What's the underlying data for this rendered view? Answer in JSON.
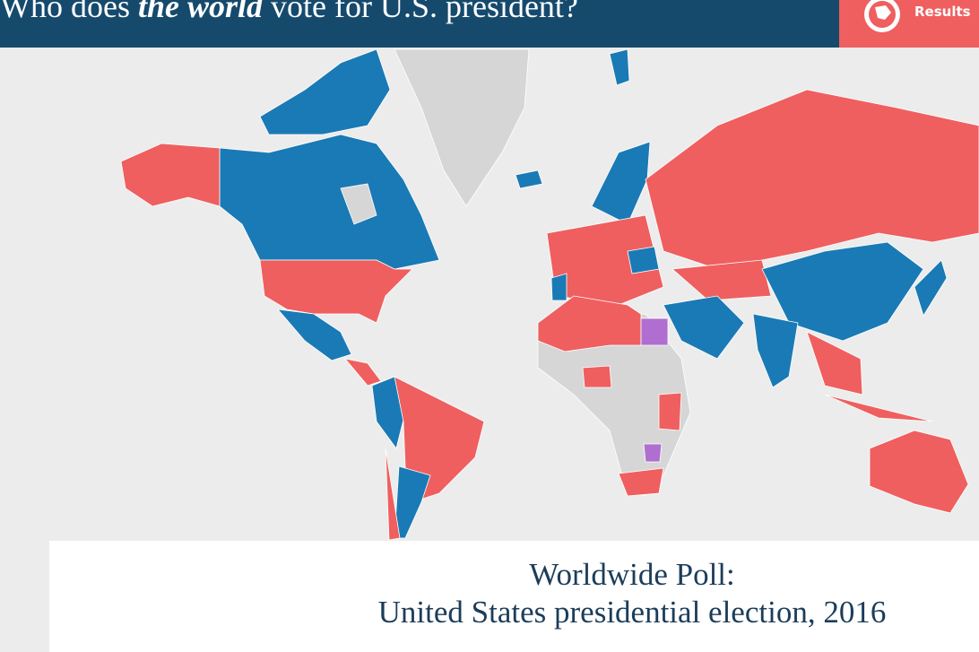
{
  "header": {
    "title_parts": [
      "Who does ",
      "the world",
      " vote for U.S. president?"
    ],
    "button": "Results"
  },
  "panel": {
    "title_lines": [
      "Worldwide Poll:",
      "United States presidential election, 2016"
    ]
  }
}
